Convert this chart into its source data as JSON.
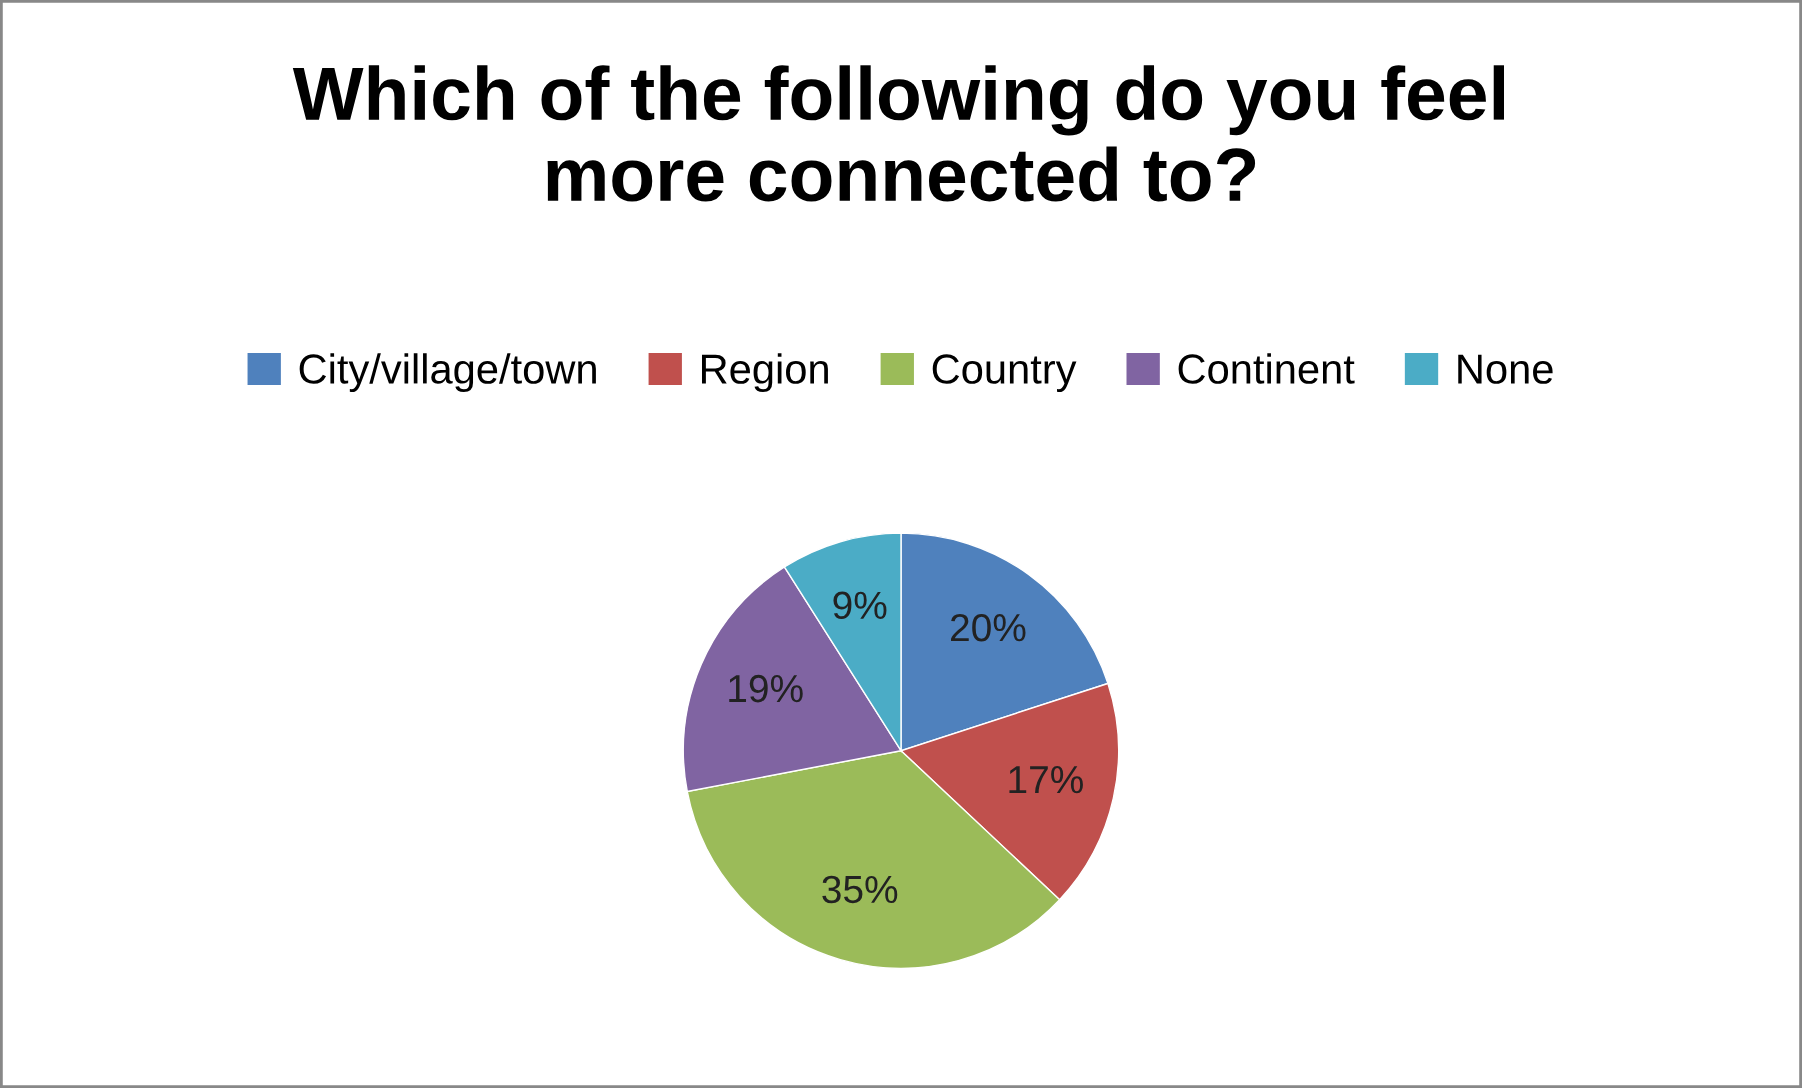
{
  "chart_data": {
    "type": "pie",
    "title": "Which of the following do you feel\nmore connected to?",
    "categories": [
      "City/village/town",
      "Region",
      "Country",
      "Continent",
      "None"
    ],
    "values": [
      20,
      17,
      35,
      19,
      9
    ],
    "colors": [
      "#4f81bd",
      "#c0504d",
      "#9bbb59",
      "#8064a2",
      "#4bacc6"
    ],
    "value_labels": [
      "20%",
      "17%",
      "35%",
      "19%",
      "9%"
    ],
    "legend": "top"
  }
}
